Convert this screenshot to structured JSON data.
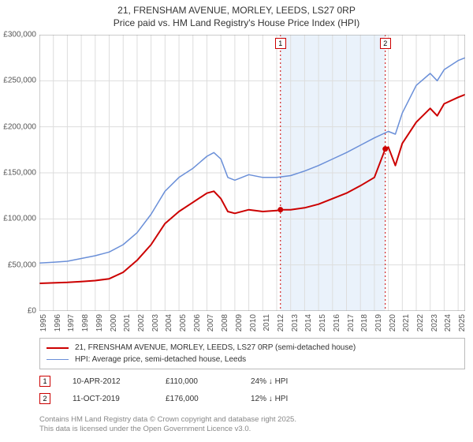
{
  "title": {
    "line1": "21, FRENSHAM AVENUE, MORLEY, LEEDS, LS27 0RP",
    "line2": "Price paid vs. HM Land Registry's House Price Index (HPI)",
    "fontsize": 12,
    "color": "#333333"
  },
  "chart": {
    "type": "line",
    "background_color": "#ffffff",
    "grid_color": "#dddddd",
    "x_axis": {
      "min": 1995,
      "max": 2025.5,
      "ticks": [
        1995,
        1996,
        1997,
        1998,
        1999,
        2000,
        2001,
        2002,
        2003,
        2004,
        2005,
        2006,
        2007,
        2008,
        2009,
        2010,
        2011,
        2012,
        2013,
        2014,
        2015,
        2016,
        2017,
        2018,
        2019,
        2020,
        2021,
        2022,
        2023,
        2024,
        2025
      ],
      "label_fontsize": 10,
      "label_color": "#555555",
      "label_rotation": -90
    },
    "y_axis": {
      "min": 0,
      "max": 300000,
      "ticks": [
        0,
        50000,
        100000,
        150000,
        200000,
        250000,
        300000
      ],
      "tick_labels": [
        "£0",
        "£50,000",
        "£100,000",
        "£150,000",
        "£200,000",
        "£250,000",
        "£300,000"
      ],
      "label_fontsize": 10,
      "label_color": "#555555"
    },
    "highlight_band": {
      "x_start": 2012.27,
      "x_end": 2019.78,
      "fill": "#eaf2fb"
    },
    "markers": [
      {
        "id": "1",
        "x": 2012.27,
        "y": 110000,
        "label_y_top": true
      },
      {
        "id": "2",
        "x": 2019.78,
        "y": 176000,
        "label_y_top": true
      }
    ],
    "marker_style": {
      "point_color": "#cc0000",
      "point_radius": 3.5,
      "badge_border": "#cc0000",
      "badge_bg": "#ffffff",
      "badge_fontsize": 9
    },
    "series": [
      {
        "name": "price_paid",
        "label": "21, FRENSHAM AVENUE, MORLEY, LEEDS, LS27 0RP (semi-detached house)",
        "color": "#cc0000",
        "line_width": 2,
        "data": [
          [
            1995,
            30000
          ],
          [
            1996,
            30500
          ],
          [
            1997,
            31000
          ],
          [
            1998,
            32000
          ],
          [
            1999,
            33000
          ],
          [
            2000,
            35000
          ],
          [
            2001,
            42000
          ],
          [
            2002,
            55000
          ],
          [
            2003,
            72000
          ],
          [
            2004,
            95000
          ],
          [
            2005,
            108000
          ],
          [
            2006,
            118000
          ],
          [
            2007,
            128000
          ],
          [
            2007.5,
            130000
          ],
          [
            2008,
            122000
          ],
          [
            2008.5,
            108000
          ],
          [
            2009,
            106000
          ],
          [
            2010,
            110000
          ],
          [
            2011,
            108000
          ],
          [
            2012,
            109000
          ],
          [
            2012.27,
            110000
          ],
          [
            2013,
            110000
          ],
          [
            2014,
            112000
          ],
          [
            2015,
            116000
          ],
          [
            2016,
            122000
          ],
          [
            2017,
            128000
          ],
          [
            2018,
            136000
          ],
          [
            2019,
            145000
          ],
          [
            2019.78,
            176000
          ],
          [
            2020,
            178000
          ],
          [
            2020.5,
            158000
          ],
          [
            2021,
            182000
          ],
          [
            2022,
            205000
          ],
          [
            2023,
            220000
          ],
          [
            2023.5,
            212000
          ],
          [
            2024,
            225000
          ],
          [
            2025,
            232000
          ],
          [
            2025.5,
            235000
          ]
        ]
      },
      {
        "name": "hpi",
        "label": "HPI: Average price, semi-detached house, Leeds",
        "color": "#6a8fd8",
        "line_width": 1.5,
        "data": [
          [
            1995,
            52000
          ],
          [
            1996,
            53000
          ],
          [
            1997,
            54000
          ],
          [
            1998,
            57000
          ],
          [
            1999,
            60000
          ],
          [
            2000,
            64000
          ],
          [
            2001,
            72000
          ],
          [
            2002,
            85000
          ],
          [
            2003,
            105000
          ],
          [
            2004,
            130000
          ],
          [
            2005,
            145000
          ],
          [
            2006,
            155000
          ],
          [
            2007,
            168000
          ],
          [
            2007.5,
            172000
          ],
          [
            2008,
            165000
          ],
          [
            2008.5,
            145000
          ],
          [
            2009,
            142000
          ],
          [
            2010,
            148000
          ],
          [
            2011,
            145000
          ],
          [
            2012,
            145000
          ],
          [
            2013,
            147000
          ],
          [
            2014,
            152000
          ],
          [
            2015,
            158000
          ],
          [
            2016,
            165000
          ],
          [
            2017,
            172000
          ],
          [
            2018,
            180000
          ],
          [
            2019,
            188000
          ],
          [
            2020,
            195000
          ],
          [
            2020.5,
            192000
          ],
          [
            2021,
            215000
          ],
          [
            2022,
            245000
          ],
          [
            2023,
            258000
          ],
          [
            2023.5,
            250000
          ],
          [
            2024,
            262000
          ],
          [
            2025,
            272000
          ],
          [
            2025.5,
            275000
          ]
        ]
      }
    ]
  },
  "legend": {
    "border_color": "#bbbbbb",
    "fontsize": 10,
    "items": [
      {
        "color": "#cc0000",
        "width": 2,
        "label": "21, FRENSHAM AVENUE, MORLEY, LEEDS, LS27 0RP (semi-detached house)"
      },
      {
        "color": "#6a8fd8",
        "width": 1.5,
        "label": "HPI: Average price, semi-detached house, Leeds"
      }
    ]
  },
  "events": [
    {
      "badge": "1",
      "date": "10-APR-2012",
      "price": "£110,000",
      "change": "24% ↓ HPI"
    },
    {
      "badge": "2",
      "date": "11-OCT-2019",
      "price": "£176,000",
      "change": "12% ↓ HPI"
    }
  ],
  "footer": {
    "line1": "Contains HM Land Registry data © Crown copyright and database right 2025.",
    "line2": "This data is licensed under the Open Government Licence v3.0.",
    "color": "#888888",
    "fontsize": 9.5
  }
}
